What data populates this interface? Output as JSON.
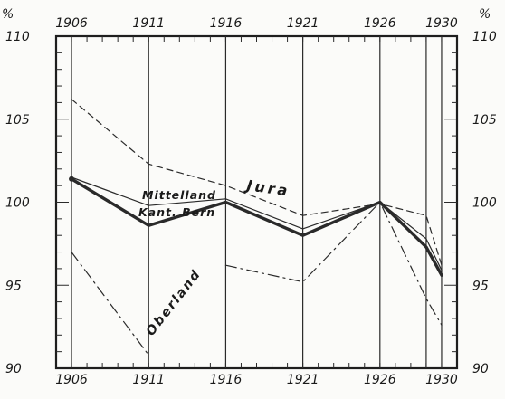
{
  "chart_data": {
    "type": "line",
    "title": "",
    "xlabel": "",
    "ylabel": "%",
    "unit_left": "%",
    "unit_right": "%",
    "x": [
      1906,
      1911,
      1916,
      1921,
      1926,
      1929,
      1930
    ],
    "x_tick_labels": [
      "1906",
      "1911",
      "1916",
      "1921",
      "1926",
      "1930"
    ],
    "y_tick_labels": [
      "110",
      "105",
      "100",
      "95",
      "90"
    ],
    "xlim": [
      1905,
      1931
    ],
    "ylim": [
      90,
      110
    ],
    "grid": true,
    "series": [
      {
        "name": "Kant. Bern",
        "style": "thick-solid",
        "color": "#2a2a2a",
        "points": [
          [
            1906,
            101.4
          ],
          [
            1911,
            98.6
          ],
          [
            1916,
            100.0
          ],
          [
            1921,
            98.0
          ],
          [
            1926,
            100.0
          ],
          [
            1929,
            97.3
          ],
          [
            1930,
            95.6
          ]
        ]
      },
      {
        "name": "Mittelland",
        "style": "thin-solid",
        "color": "#2a2a2a",
        "points": [
          [
            1906,
            101.5
          ],
          [
            1911,
            99.8
          ],
          [
            1916,
            100.2
          ],
          [
            1921,
            98.4
          ],
          [
            1926,
            100.0
          ],
          [
            1929,
            97.8
          ],
          [
            1930,
            95.9
          ]
        ]
      },
      {
        "name": "Jura",
        "style": "dashed",
        "color": "#2a2a2a",
        "points": [
          [
            1906,
            106.2
          ],
          [
            1911,
            102.3
          ],
          [
            1916,
            101.0
          ],
          [
            1921,
            99.2
          ],
          [
            1926,
            99.9
          ],
          [
            1929,
            99.2
          ],
          [
            1930,
            96.2
          ]
        ]
      },
      {
        "name": "Oberland",
        "style": "dash-dot",
        "color": "#2a2a2a",
        "points": [
          [
            1906,
            97.0
          ],
          [
            1911,
            90.8
          ],
          [
            1916,
            null
          ],
          [
            1916,
            96.2
          ],
          [
            1921,
            95.2
          ],
          [
            1926,
            100.0
          ],
          [
            1929,
            94.2
          ],
          [
            1930,
            92.6
          ]
        ]
      }
    ]
  }
}
